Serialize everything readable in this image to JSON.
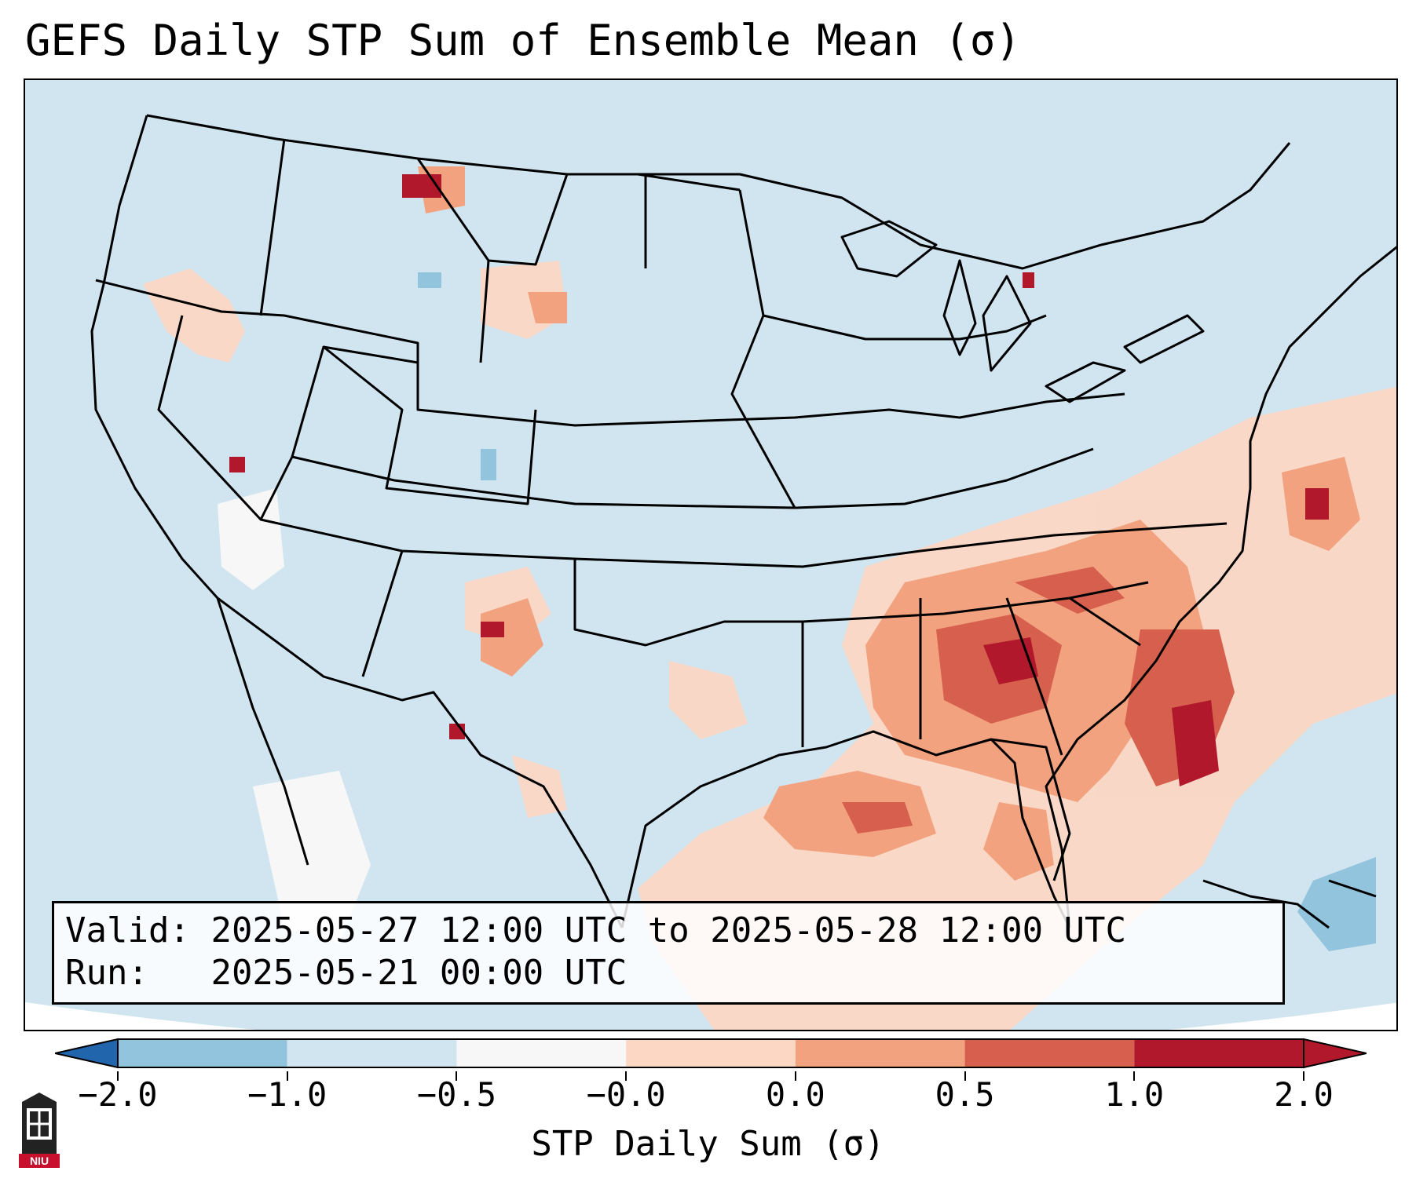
{
  "title": "GEFS Daily STP Sum of Ensemble Mean (σ)",
  "info": {
    "valid_label": "Valid:",
    "valid_value": "2025-05-27 12:00 UTC to 2025-05-28 12:00 UTC",
    "run_label": "Run:",
    "run_value": "2025-05-21 00:00 UTC"
  },
  "colorbar": {
    "label": "STP Daily Sum (σ)",
    "ticks": [
      "−2.0",
      "−1.0",
      "−0.5",
      "−0.0",
      "0.0",
      "0.5",
      "1.0",
      "2.0"
    ],
    "bin_colors": [
      "#3f86c2",
      "#92c4de",
      "#d0e5f0",
      "#f7f7f7",
      "#fbd7c4",
      "#f2a27f",
      "#d6604d",
      "#b2182b"
    ],
    "under_color": "#2166ac",
    "over_color": "#b2182b"
  },
  "colors": {
    "ocean_outside": "#ffffff",
    "map_background": "#d1e5f0",
    "borders": "#000000"
  },
  "logo_text": "NIU"
}
